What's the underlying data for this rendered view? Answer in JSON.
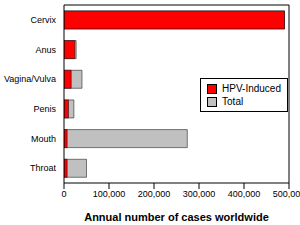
{
  "chart_data": {
    "type": "bar",
    "orientation": "horizontal",
    "x_label": "Annual number of cases worldwide",
    "categories": [
      "Cervix",
      "Anus",
      "Vagina/Vulva",
      "Penis",
      "Mouth",
      "Throat"
    ],
    "series": [
      {
        "name": "HPV-Induced",
        "color": "#ff0000",
        "values": [
          490000,
          24000,
          16000,
          10000,
          7000,
          7000
        ]
      },
      {
        "name": "Total",
        "color": "#c0c0c0",
        "values": [
          490000,
          27000,
          40000,
          22000,
          274000,
          50000
        ]
      }
    ],
    "xlim": [
      0,
      500000
    ],
    "xticks": [
      0,
      {
        "value": 100000,
        "label": "100,000"
      },
      {
        "value": 200000,
        "label": "200,000"
      },
      {
        "value": 300000,
        "label": "300,000"
      },
      {
        "value": 400000,
        "label": "400,000"
      },
      {
        "value": 500000,
        "label": "500,000"
      }
    ],
    "grid": false,
    "legend": "upper right"
  }
}
